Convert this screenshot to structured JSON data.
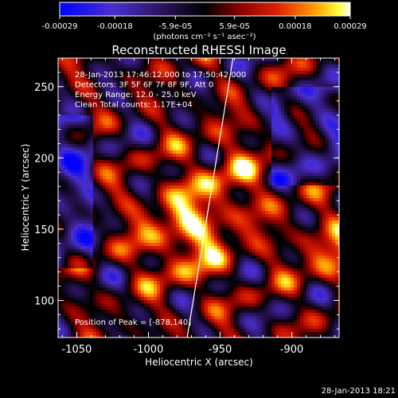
{
  "chart_data": {
    "type": "heatmap",
    "title": "Reconstructed RHESSI Image",
    "xlabel": "Heliocentric X (arcsec)",
    "ylabel": "Heliocentric Y (arcsec)",
    "xlim": [
      -1063,
      -867
    ],
    "ylim": [
      74,
      270
    ],
    "x_ticks": [
      -1050,
      -1000,
      -950,
      -900
    ],
    "x_tick_labels": [
      "-1050",
      "-1000",
      "-950",
      "-900"
    ],
    "y_ticks": [
      100,
      150,
      200,
      250
    ],
    "y_tick_labels": [
      "100",
      "150",
      "200",
      "250"
    ],
    "colorbar": {
      "colormap": "blue-purple-black-red-orange-yellow-white",
      "range": [
        -0.00029,
        0.00029
      ],
      "ticks": [
        -0.00029,
        -0.00018,
        -5.9e-05,
        5.9e-05,
        0.00018,
        0.00029
      ],
      "tick_labels": [
        "-0.00029",
        "-0.00018",
        "-5.9e-05",
        "5.9e-05",
        "0.00018",
        "0.00029"
      ],
      "unit_label": "(photons cm⁻² s⁻¹ asec⁻²)"
    },
    "annotations": [
      "28-Jan-2013 17:46:12.000 to 17:50:42.000",
      "Detectors: 3F 5F 6F 7F 8F 9F, Att 0",
      "Energy Range: 12.0 - 25.0 keV",
      "Clean    Total counts: 1.17E+04"
    ],
    "peak_label": "Position of Peak = [-878,140]",
    "peak": [
      -878,
      140
    ],
    "limb_line": {
      "x": [
        -973,
        -941
      ],
      "y": [
        74,
        270
      ]
    },
    "timestamp": "28-Jan-2013 18:21",
    "grid": false
  }
}
